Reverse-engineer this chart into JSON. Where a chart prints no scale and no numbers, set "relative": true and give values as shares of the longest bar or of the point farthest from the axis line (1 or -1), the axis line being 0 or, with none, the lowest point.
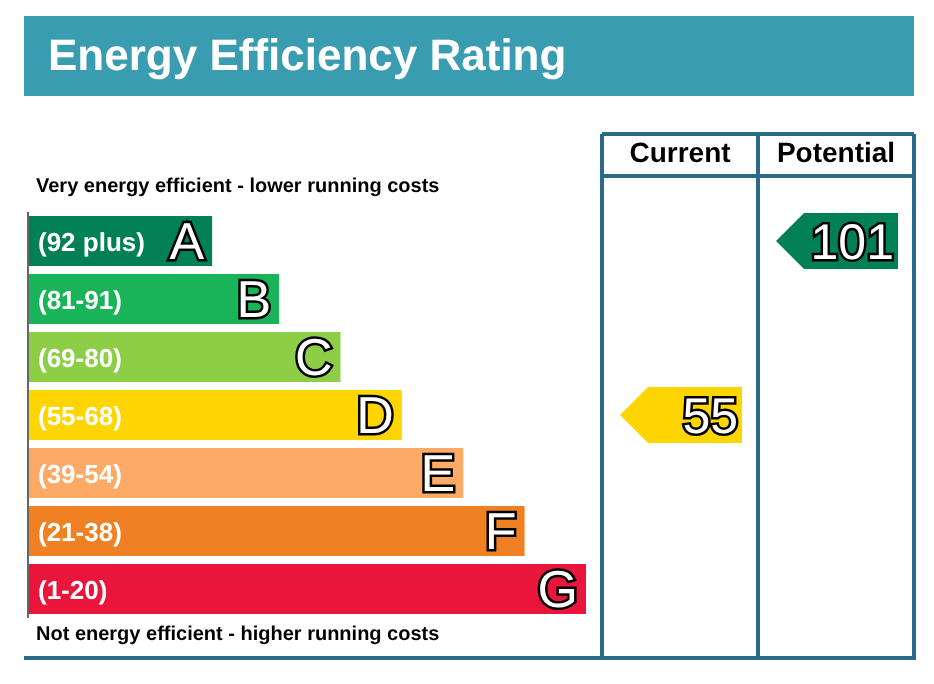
{
  "chart_data": {
    "type": "bar",
    "orientation": "horizontal",
    "relative": true,
    "title": "Energy Efficiency Rating",
    "categories": [
      "(92 plus) A",
      "(81-91) B",
      "(69-80) C",
      "(55-68) D",
      "(39-54) E",
      "(21-38) F",
      "(1-20) G"
    ],
    "values": [
      0.33,
      0.45,
      0.56,
      0.67,
      0.78,
      0.89,
      1
    ],
    "colors": [
      "#008054",
      "#19b459",
      "#8dce46",
      "#ffd500",
      "#fcaa65",
      "#ef8023",
      "#e9153b"
    ],
    "annotations": [
      "Very energy efficient - lower running costs",
      "Not energy efficient - higher running costs",
      "Current",
      "Potential",
      "55",
      "101"
    ]
  }
}
